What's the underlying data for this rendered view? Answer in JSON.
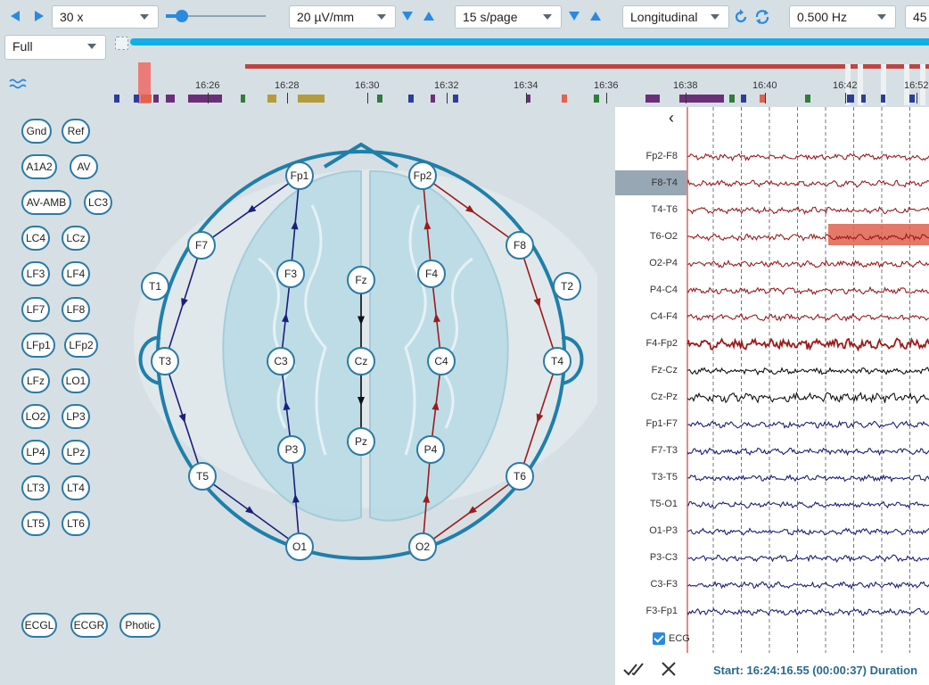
{
  "toolbar": {
    "speed": "30 x",
    "sensitivity": "20 µV/mm",
    "timebase": "15 s/page",
    "montage": "Longitudinal",
    "filter": "0.500 Hz",
    "extra": "45"
  },
  "view_mode": "Full",
  "timeline": {
    "ticks": [
      "16:26",
      "16:28",
      "16:30",
      "16:32",
      "16:34",
      "16:36",
      "16:38",
      "16:40",
      "16:42",
      "16:52"
    ]
  },
  "montage_buttons": [
    "Gnd",
    "Ref",
    "A1A2",
    "AV",
    "AV-AMB",
    "LC3",
    "LC4",
    "LCz",
    "LF3",
    "LF4",
    "LF7",
    "LF8",
    "LFp1",
    "LFp2",
    "LFz",
    "LO1",
    "LO2",
    "LP3",
    "LP4",
    "LPz",
    "LT3",
    "LT4",
    "LT5",
    "LT6"
  ],
  "aux_buttons": [
    "ECGL",
    "ECGR",
    "Photic"
  ],
  "electrodes": [
    "Fp1",
    "Fp2",
    "F7",
    "F3",
    "Fz",
    "F4",
    "F8",
    "T1",
    "T2",
    "T3",
    "C3",
    "Cz",
    "C4",
    "T4",
    "P3",
    "Pz",
    "P4",
    "T5",
    "T6",
    "O1",
    "O2"
  ],
  "channels": [
    "Fp2-F8",
    "F8-T4",
    "T4-T6",
    "T6-O2",
    "O2-P4",
    "P4-C4",
    "C4-F4",
    "F4-Fp2",
    "Fz-Cz",
    "Cz-Pz",
    "Fp1-F7",
    "F7-T3",
    "T3-T5",
    "T5-O1",
    "O1-P3",
    "P3-C3",
    "C3-F3",
    "F3-Fp1"
  ],
  "ecg_label": "ECG",
  "status": "Start: 16:24:16.55 (00:00:37) Duration",
  "colors": {
    "accent": "#2a8ae0",
    "progress": "#11aee8",
    "right_chain": "#9b1c1c",
    "left_chain": "#1b1f7a",
    "mid_chain": "#111111",
    "node_border": "#2a7ba6",
    "event_red": "#e0624f"
  }
}
